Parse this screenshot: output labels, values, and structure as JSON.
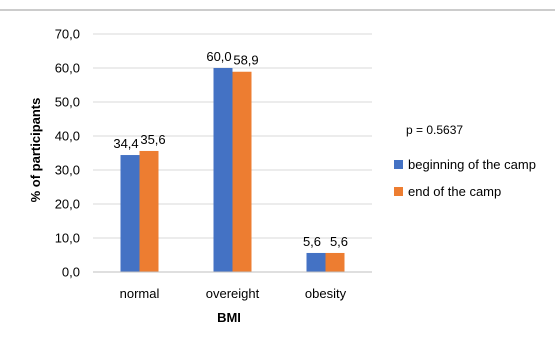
{
  "chart_data": {
    "type": "bar",
    "categories": [
      "normal",
      "overeight",
      "obesity"
    ],
    "series": [
      {
        "name": "beginning of the camp",
        "values": [
          34.4,
          60.0,
          5.6
        ],
        "labels": [
          "34,4",
          "60,0",
          "5,6"
        ],
        "color": "#4472C4"
      },
      {
        "name": "end of the camp",
        "values": [
          35.6,
          58.9,
          5.6
        ],
        "labels": [
          "35,6",
          "58,9",
          "5,6"
        ],
        "color": "#ED7D31"
      }
    ],
    "ylabel": "% of participants",
    "xlabel": "BMI",
    "ylim": [
      0,
      70
    ],
    "yticks": [
      "0,0",
      "10,0",
      "20,0",
      "30,0",
      "40,0",
      "50,0",
      "60,0",
      "70,0"
    ],
    "grid": true,
    "legend_position": "right",
    "annotation": "p = 0.5637"
  }
}
